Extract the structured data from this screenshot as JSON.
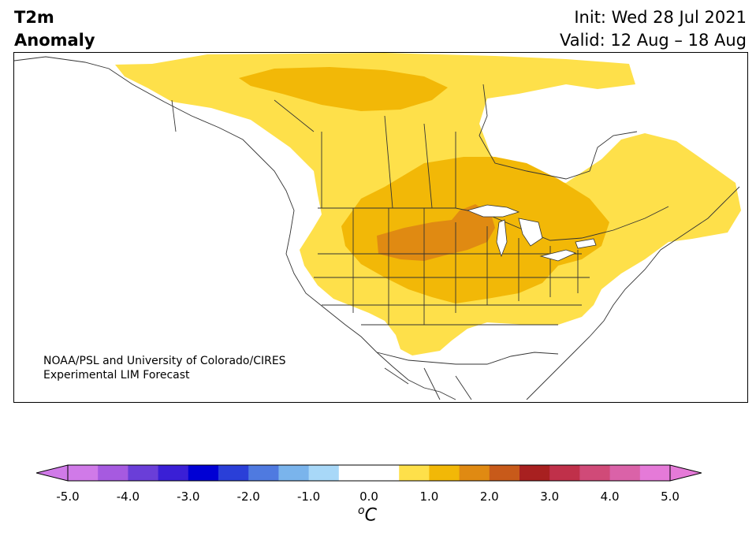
{
  "title": {
    "line1": "T2m",
    "line2": "Anomaly"
  },
  "init": "Init: Wed 28 Jul 2021",
  "valid": "Valid: 12 Aug – 18 Aug",
  "credit": {
    "line1": "NOAA/PSL and University of Colorado/CIRES",
    "line2": "Experimental LIM Forecast"
  },
  "colorbar": {
    "unit_sup": "o",
    "unit": "C",
    "tick_labels": [
      "-5.0",
      "-4.0",
      "-3.0",
      "-2.0",
      "-1.0",
      "0.0",
      "1.0",
      "2.0",
      "3.0",
      "4.0",
      "5.0"
    ],
    "under_color": "#d07ae8",
    "over_color": "#e57ad8",
    "bin_colors": [
      "#d07ae8",
      "#a65ae0",
      "#6a3ed8",
      "#3a1fd6",
      "#0000d4",
      "#2a3fd8",
      "#4f7ae0",
      "#7ab4ec",
      "#a8d8f8",
      "#ffffff",
      "#ffffff",
      "#fee04a",
      "#f2b807",
      "#e08a12",
      "#c85a1a",
      "#a82020",
      "#c0304a",
      "#d04a78",
      "#da62a8",
      "#e57ad8"
    ]
  },
  "map_colors": {
    "level_05_10": "#fee04a",
    "level_10_15": "#f2b807",
    "level_15_20": "#e08a12",
    "boundary": "#333333"
  }
}
